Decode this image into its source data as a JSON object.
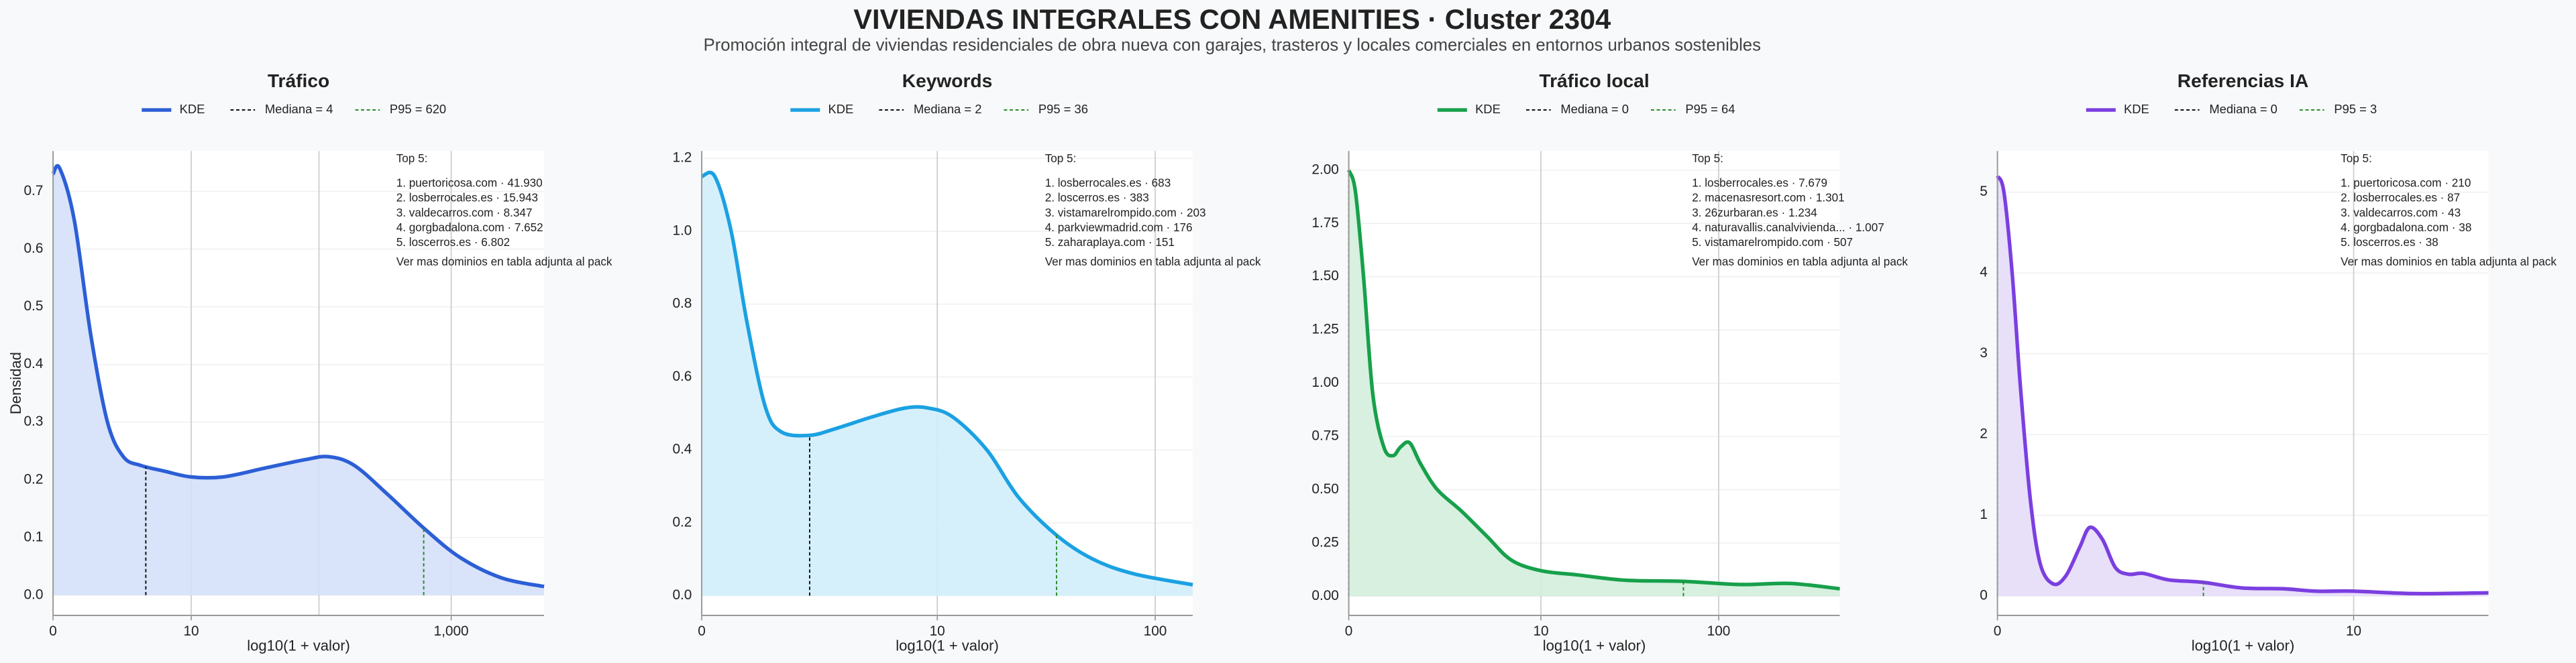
{
  "title": "VIVIENDAS INTEGRALES CON AMENITIES · Cluster 2304",
  "subtitle": "Promoción integral de viviendas residenciales de obra nueva con garajes, trasteros y locales comerciales en entornos urbanos sostenibles",
  "chart_data": [
    {
      "type": "line",
      "title": "Tráfico",
      "xlabel": "log10(1 + valor)",
      "ylabel": "Densidad",
      "x": [
        0,
        0.05,
        0.16,
        0.285,
        0.41,
        0.53,
        0.66,
        0.84,
        1.04,
        1.28,
        1.59,
        1.9,
        2.08,
        2.27,
        2.52,
        2.8,
        3.07,
        3.38,
        3.7
      ],
      "series": [
        {
          "name": "KDE",
          "color": "#2c5fd6",
          "fill": "#d5e0f8",
          "values": [
            0.73,
            0.74,
            0.65,
            0.45,
            0.3,
            0.24,
            0.225,
            0.215,
            0.205,
            0.205,
            0.22,
            0.235,
            0.24,
            0.225,
            0.175,
            0.115,
            0.065,
            0.03,
            0.015
          ]
        }
      ],
      "vlines": [
        {
          "name": "Mediana = 4",
          "x": 0.699,
          "color": "#111111"
        },
        {
          "name": "P95 = 620",
          "x": 2.793,
          "color": "#2a8a2a"
        }
      ],
      "xlim": [
        0,
        3.7
      ],
      "xticks": [
        0,
        {
          "value": 1.041,
          "label": "10"
        },
        {
          "value": 3.0,
          "label": "1,000"
        }
      ],
      "xgrid": [
        1.041,
        2.004,
        3.0
      ],
      "ylim": [
        -0.035,
        0.77
      ],
      "yticks": [
        {
          "value": 0,
          "label": "0.0"
        },
        0.1,
        0.2,
        0.3,
        0.4,
        0.5,
        0.6,
        0.7
      ],
      "annotation": {
        "header": "Top 5:",
        "items": [
          "1. puertoricosa.com · 41.930",
          "2. losberrocales.es · 15.943",
          "3. valdecarros.com · 8.347",
          "4. gorgbadalona.com · 7.652",
          "5. loscerros.es · 6.802"
        ],
        "footer": "Ver mas dominios en tabla adjunta al pack"
      }
    },
    {
      "type": "line",
      "title": "Keywords",
      "xlabel": "log10(1 + valor)",
      "x": [
        0,
        0.058,
        0.13,
        0.2,
        0.28,
        0.35,
        0.477,
        0.6,
        0.75,
        0.9,
        1.0,
        1.11,
        1.26,
        1.4,
        1.57,
        1.73,
        1.91,
        2.17
      ],
      "series": [
        {
          "name": "KDE",
          "color": "#1ba1e2",
          "fill": "#d2eefb",
          "values": [
            1.15,
            1.15,
            1.0,
            0.75,
            0.52,
            0.45,
            0.44,
            0.46,
            0.49,
            0.515,
            0.515,
            0.49,
            0.4,
            0.27,
            0.165,
            0.1,
            0.06,
            0.03
          ]
        }
      ],
      "vlines": [
        {
          "name": "Mediana = 2",
          "x": 0.477,
          "color": "#111111"
        },
        {
          "name": "P95 = 36",
          "x": 1.568,
          "color": "#2a8a2a"
        }
      ],
      "xlim": [
        0,
        2.17
      ],
      "xticks": [
        0,
        {
          "value": 1.041,
          "label": "10"
        },
        {
          "value": 2.004,
          "label": "100"
        }
      ],
      "xgrid": [
        1.041,
        2.004
      ],
      "ylim": [
        -0.054,
        1.22
      ],
      "yticks": [
        {
          "value": 0,
          "label": "0.0"
        },
        0.2,
        0.4,
        0.6,
        0.8,
        {
          "value": 1,
          "label": "1.0"
        },
        1.2
      ],
      "annotation": {
        "header": "Top 5:",
        "items": [
          "1. losberrocales.es · 683",
          "2. loscerros.es · 383",
          "3. vistamarelrompido.com · 203",
          "4. parkviewmadrid.com · 176",
          "5. zaharaplaya.com · 151"
        ],
        "footer": "Ver mas dominios en tabla adjunta al pack"
      }
    },
    {
      "type": "line",
      "title": "Tráfico local",
      "xlabel": "log10(1 + valor)",
      "x": [
        0,
        0.036,
        0.08,
        0.13,
        0.19,
        0.24,
        0.28,
        0.33,
        0.39,
        0.48,
        0.61,
        0.75,
        0.88,
        1.04,
        1.24,
        1.5,
        1.81,
        2.12,
        2.39,
        2.66
      ],
      "series": [
        {
          "name": "KDE",
          "color": "#17a04b",
          "fill": "#d3eedb",
          "values": [
            2.0,
            1.9,
            1.5,
            0.95,
            0.7,
            0.66,
            0.7,
            0.72,
            0.62,
            0.5,
            0.4,
            0.28,
            0.17,
            0.12,
            0.1,
            0.075,
            0.07,
            0.055,
            0.06,
            0.035
          ]
        }
      ],
      "vlines": [
        {
          "name": "Mediana = 0",
          "x": 0,
          "color": "#111111"
        },
        {
          "name": "P95 = 64",
          "x": 1.813,
          "color": "#2a8a2a"
        }
      ],
      "xlim": [
        0,
        2.66
      ],
      "xticks": [
        0,
        {
          "value": 1.041,
          "label": "10"
        },
        {
          "value": 2.004,
          "label": "100"
        }
      ],
      "xgrid": [
        1.041,
        2.004
      ],
      "ylim": [
        -0.09,
        2.09
      ],
      "yticks": [
        {
          "value": 0,
          "label": "0.00"
        },
        0.25,
        {
          "value": 0.5,
          "label": "0.50"
        },
        0.75,
        {
          "value": 1,
          "label": "1.00"
        },
        1.25,
        {
          "value": 1.5,
          "label": "1.50"
        },
        1.75,
        {
          "value": 2,
          "label": "2.00"
        }
      ],
      "annotation": {
        "header": "Top 5:",
        "items": [
          "1. losberrocales.es · 7.679",
          "2. macenasresort.com · 1.301",
          "3. 26zurbaran.es · 1.234",
          "4. naturavallis.canalvivienda... · 1.007",
          "5. vistamarelrompido.com · 507"
        ],
        "footer": "Ver mas dominios en tabla adjunta al pack"
      }
    },
    {
      "type": "line",
      "title": "Referencias IA",
      "xlabel": "log10(1 + valor)",
      "x": [
        0,
        0.019,
        0.043,
        0.067,
        0.096,
        0.125,
        0.163,
        0.2,
        0.24,
        0.27,
        0.307,
        0.345,
        0.384,
        0.427,
        0.5,
        0.6,
        0.715,
        0.835,
        0.93,
        1.04,
        1.22,
        1.435
      ],
      "series": [
        {
          "name": "KDE",
          "color": "#7b3fe0",
          "fill": "#e6dcf8",
          "values": [
            5.2,
            5.0,
            4.0,
            2.6,
            1.2,
            0.4,
            0.15,
            0.25,
            0.6,
            0.85,
            0.7,
            0.35,
            0.27,
            0.28,
            0.2,
            0.17,
            0.1,
            0.09,
            0.06,
            0.06,
            0.03,
            0.04
          ]
        }
      ],
      "vlines": [
        {
          "name": "Mediana = 0",
          "x": 0,
          "color": "#111111"
        },
        {
          "name": "P95 = 3",
          "x": 0.602,
          "color": "#2a8a2a"
        }
      ],
      "xlim": [
        0,
        1.435
      ],
      "xticks": [
        0,
        {
          "value": 1.041,
          "label": "10"
        }
      ],
      "xgrid": [
        1.041
      ],
      "ylim": [
        -0.24,
        5.51
      ],
      "yticks": [
        0,
        1,
        2,
        3,
        4,
        5
      ],
      "annotation": {
        "header": "Top 5:",
        "items": [
          "1. puertoricosa.com · 210",
          "2. losberrocales.es · 87",
          "3. valdecarros.com · 43",
          "4. gorgbadalona.com · 38",
          "5. loscerros.es · 38"
        ],
        "footer": "Ver mas dominios en tabla adjunta al pack"
      }
    }
  ]
}
